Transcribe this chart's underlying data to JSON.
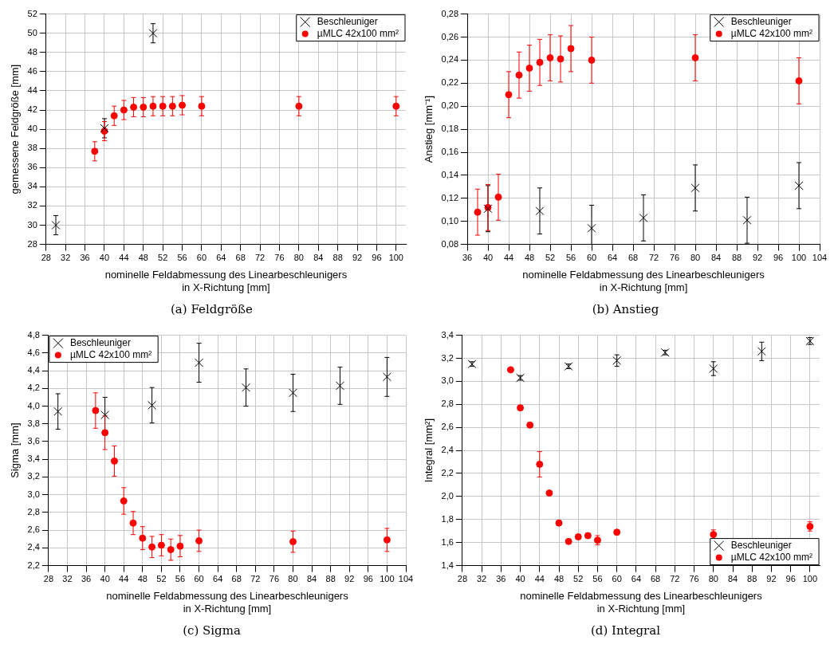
{
  "chart_data": [
    {
      "type": "scatter",
      "title": "(a) Feldgröße",
      "xlabel": "nominelle Feldabmessung des Linearbeschleunigers\nin X-Richtung [mm]",
      "ylabel": "gemessene Feldgröße [mm]",
      "xlim": [
        28,
        102
      ],
      "xticks": [
        28,
        32,
        36,
        40,
        44,
        48,
        52,
        56,
        60,
        64,
        68,
        72,
        76,
        80,
        84,
        88,
        92,
        96,
        100
      ],
      "ylim": [
        28,
        52
      ],
      "yticks": [
        28,
        30,
        32,
        34,
        36,
        38,
        40,
        42,
        44,
        46,
        48,
        50,
        52
      ],
      "grid": true,
      "legend": "top right",
      "series": [
        {
          "name": "Beschleuniger",
          "color": "#000000",
          "marker": "cross",
          "x": [
            30,
            40,
            50
          ],
          "values": [
            30,
            40.1,
            50
          ],
          "errors": [
            1,
            1,
            1
          ]
        },
        {
          "name": "µMLC 42x100 mm²",
          "color": "#ff0000",
          "marker": "circle",
          "x": [
            38,
            40,
            42,
            44,
            46,
            48,
            50,
            52,
            54,
            56,
            60,
            80,
            100
          ],
          "values": [
            37.7,
            39.8,
            41.4,
            42.0,
            42.3,
            42.3,
            42.4,
            42.4,
            42.4,
            42.5,
            42.4,
            42.4,
            42.4
          ],
          "errors": [
            1,
            1,
            1,
            1,
            1,
            1,
            1,
            1,
            1,
            1,
            1,
            1,
            1
          ]
        }
      ]
    },
    {
      "type": "scatter",
      "title": "(b) Anstieg",
      "xlabel": "nominelle Feldabmessung des Linearbeschleunigers\nin X-Richtung [mm]",
      "ylabel": "Anstieg [mm⁻¹]",
      "xlim": [
        36,
        104
      ],
      "xticks": [
        36,
        40,
        44,
        48,
        52,
        56,
        60,
        64,
        68,
        72,
        76,
        80,
        84,
        88,
        92,
        96,
        100,
        104
      ],
      "ylim": [
        0.08,
        0.28
      ],
      "yticks": [
        {
          "value": 0.08,
          "label": "0,08"
        },
        {
          "value": 0.1,
          "label": "0,10"
        },
        {
          "value": 0.12,
          "label": "0,12"
        },
        {
          "value": 0.14,
          "label": "0,14"
        },
        {
          "value": 0.16,
          "label": "0,16"
        },
        {
          "value": 0.18,
          "label": "0,18"
        },
        {
          "value": 0.2,
          "label": "0,20"
        },
        {
          "value": 0.22,
          "label": "0,22"
        },
        {
          "value": 0.24,
          "label": "0,24"
        },
        {
          "value": 0.26,
          "label": "0,26"
        },
        {
          "value": 0.28,
          "label": "0,28"
        }
      ],
      "grid": true,
      "legend": "top right",
      "series": [
        {
          "name": "Beschleuniger",
          "color": "#000000",
          "marker": "cross",
          "x": [
            40,
            50,
            60,
            70,
            80,
            90,
            100
          ],
          "values": [
            0.111,
            0.109,
            0.094,
            0.103,
            0.129,
            0.101,
            0.131
          ],
          "errors": [
            0.02,
            0.02,
            [
              0.08,
              0.114
            ],
            0.02,
            0.02,
            0.02,
            0.02
          ]
        },
        {
          "name": "µMLC 42x100 mm²",
          "color": "#ff0000",
          "marker": "circle",
          "x": [
            38,
            40,
            42,
            44,
            46,
            48,
            50,
            52,
            54,
            56,
            60,
            80,
            100
          ],
          "values": [
            0.108,
            0.112,
            0.121,
            0.21,
            0.227,
            0.233,
            0.238,
            0.242,
            0.241,
            0.25,
            0.24,
            0.242,
            0.222
          ],
          "errors": [
            0.02,
            0.02,
            0.02,
            0.02,
            0.02,
            0.02,
            0.02,
            0.02,
            0.02,
            0.02,
            0.02,
            0.02,
            0.02
          ]
        }
      ]
    },
    {
      "type": "scatter",
      "title": "(c) Sigma",
      "xlabel": "nominelle Feldabmessung des Linearbeschleunigers\nin X-Richtung [mm]",
      "ylabel": "Sigma [mm]",
      "xlim": [
        28,
        104
      ],
      "xticks": [
        28,
        32,
        36,
        40,
        44,
        48,
        52,
        56,
        60,
        64,
        68,
        72,
        76,
        80,
        84,
        88,
        92,
        96,
        100,
        104
      ],
      "ylim": [
        2.2,
        4.8
      ],
      "yticks": [
        {
          "value": 2.2,
          "label": "2,2"
        },
        {
          "value": 2.4,
          "label": "2,4"
        },
        {
          "value": 2.6,
          "label": "2,6"
        },
        {
          "value": 2.8,
          "label": "2,8"
        },
        {
          "value": 3.0,
          "label": "3,0"
        },
        {
          "value": 3.2,
          "label": "3,2"
        },
        {
          "value": 3.4,
          "label": "3,4"
        },
        {
          "value": 3.6,
          "label": "3,6"
        },
        {
          "value": 3.8,
          "label": "3,8"
        },
        {
          "value": 4.0,
          "label": "4,0"
        },
        {
          "value": 4.2,
          "label": "4,2"
        },
        {
          "value": 4.4,
          "label": "4,4"
        },
        {
          "value": 4.6,
          "label": "4,6"
        },
        {
          "value": 4.8,
          "label": "4,8"
        }
      ],
      "grid": true,
      "legend": "top left",
      "series": [
        {
          "name": "Beschleuniger",
          "color": "#000000",
          "marker": "cross",
          "x": [
            30,
            40,
            50,
            60,
            70,
            80,
            90,
            100
          ],
          "values": [
            3.94,
            3.9,
            4.01,
            4.49,
            4.21,
            4.15,
            4.23,
            4.33
          ],
          "errors": [
            0.2,
            0.2,
            0.2,
            0.22,
            0.21,
            0.21,
            0.21,
            0.22
          ]
        },
        {
          "name": "µMLC 42x100 mm²",
          "color": "#ff0000",
          "marker": "circle",
          "x": [
            38,
            40,
            42,
            44,
            46,
            48,
            50,
            52,
            54,
            56,
            60,
            80,
            100
          ],
          "values": [
            3.95,
            3.7,
            3.38,
            2.93,
            2.68,
            2.51,
            2.41,
            2.43,
            2.38,
            2.42,
            2.48,
            2.47,
            2.49
          ],
          "errors": [
            0.2,
            0.19,
            0.17,
            0.15,
            0.13,
            0.13,
            0.12,
            0.12,
            0.12,
            0.12,
            0.12,
            0.12,
            0.13
          ]
        }
      ]
    },
    {
      "type": "scatter",
      "title": "(d) Integral",
      "xlabel": "nominelle Feldabmessung des Linearbeschleunigers\nin X-Richtung [mm]",
      "ylabel": "Integral [mm²]",
      "xlim": [
        28,
        102
      ],
      "xticks": [
        28,
        32,
        36,
        40,
        44,
        48,
        52,
        56,
        60,
        64,
        68,
        72,
        76,
        80,
        84,
        88,
        92,
        96,
        100
      ],
      "ylim": [
        1.4,
        3.4
      ],
      "yticks": [
        {
          "value": 1.4,
          "label": "1,4"
        },
        {
          "value": 1.6,
          "label": "1,6"
        },
        {
          "value": 1.8,
          "label": "1,8"
        },
        {
          "value": 2.0,
          "label": "2,0"
        },
        {
          "value": 2.2,
          "label": "2,2"
        },
        {
          "value": 2.4,
          "label": "2,4"
        },
        {
          "value": 2.6,
          "label": "2,6"
        },
        {
          "value": 2.8,
          "label": "2,8"
        },
        {
          "value": 3.0,
          "label": "3,0"
        },
        {
          "value": 3.2,
          "label": "3,2"
        },
        {
          "value": 3.4,
          "label": "3,4"
        }
      ],
      "grid": true,
      "legend": "bottom right",
      "series": [
        {
          "name": "Beschleuniger",
          "color": "#000000",
          "marker": "cross",
          "x": [
            30,
            40,
            50,
            60,
            70,
            80,
            90,
            100
          ],
          "values": [
            3.15,
            3.03,
            3.13,
            3.18,
            3.25,
            3.11,
            3.26,
            3.35
          ],
          "errors": [
            0.02,
            0.02,
            0.02,
            0.05,
            0.02,
            0.06,
            0.08,
            0.03
          ]
        },
        {
          "name": "µMLC 42x100 mm²",
          "color": "#ff0000",
          "marker": "circle",
          "x": [
            38,
            40,
            42,
            44,
            46,
            48,
            50,
            52,
            54,
            56,
            60,
            80,
            100
          ],
          "values": [
            3.1,
            2.77,
            2.62,
            2.28,
            2.03,
            1.77,
            1.61,
            1.65,
            1.66,
            1.62,
            1.69,
            1.67,
            1.74
          ],
          "errors": [
            null,
            null,
            null,
            0.11,
            null,
            0.02,
            null,
            0.02,
            0.02,
            0.04,
            0.02,
            0.04,
            0.04
          ]
        }
      ]
    }
  ]
}
